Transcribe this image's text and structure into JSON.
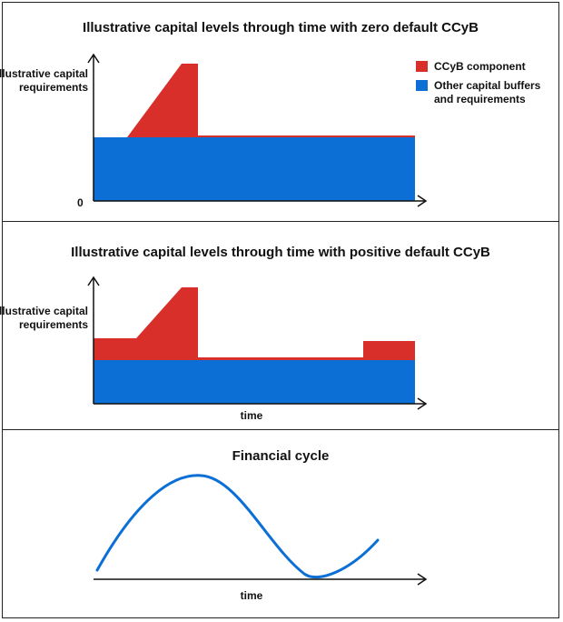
{
  "panel1": {
    "title": "Illustrative capital levels through time with zero default CCyB",
    "ylabel": "Illustrative capital requirements",
    "zero_label": "0"
  },
  "panel2": {
    "title": "Illustrative capital levels through time with positive default CCyB",
    "ylabel": "Illustrative capital requirements",
    "xlabel": "time"
  },
  "panel3": {
    "title": "Financial cycle",
    "xlabel": "time"
  },
  "legend": {
    "ccyb": "CCyB component",
    "other": "Other capital buffers and requirements"
  },
  "colors": {
    "ccyb": "#d92f2b",
    "other": "#0b6fd6",
    "curve": "#0b6fd6",
    "axis": "#111111"
  }
}
